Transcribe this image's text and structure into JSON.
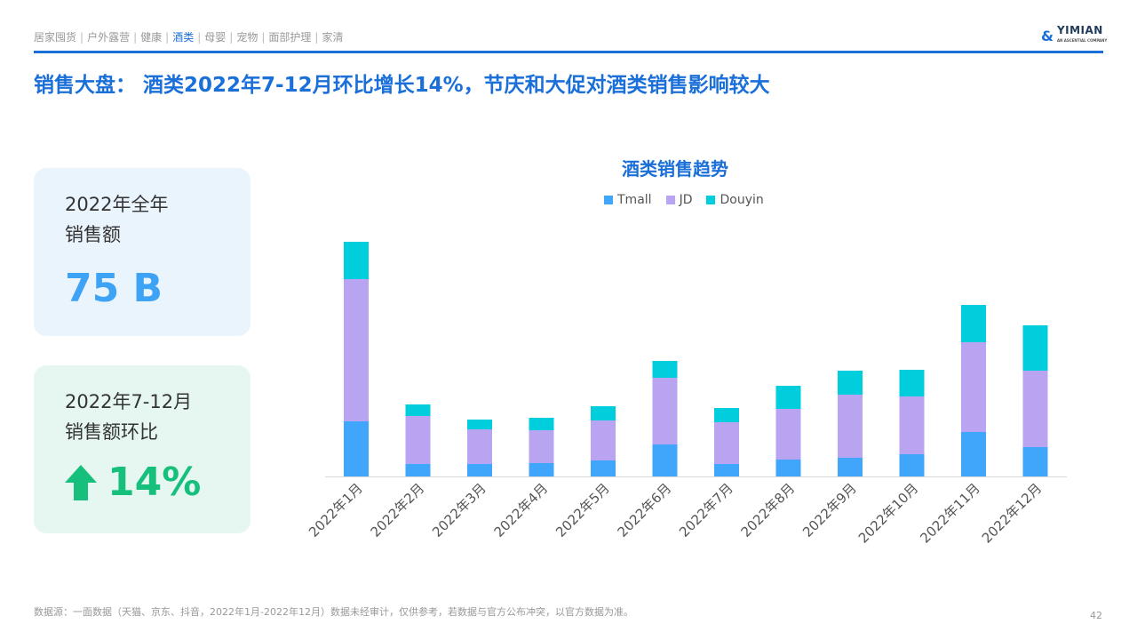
{
  "nav": {
    "items": [
      "居家囤货",
      "户外露营",
      "健康",
      "酒类",
      "母婴",
      "宠物",
      "面部护理",
      "家清"
    ],
    "active": "酒类"
  },
  "logo": {
    "name": "YIMIAN",
    "tagline": "AN ASCENTIAL COMPANY"
  },
  "title": "销售大盘： 酒类2022年7-12月环比增长14%，节庆和大促对酒类销售影响较大",
  "cards": [
    {
      "label_line1": "2022年全年",
      "label_line2": "销售额",
      "value": "75 B"
    },
    {
      "label_line1": "2022年7-12月",
      "label_line2": "销售额环比",
      "value": "14%",
      "trend": "up"
    }
  ],
  "footer": {
    "source": "数据源：一面数据（天猫、京东、抖音，2022年1月-2022年12月）数据未经审计，仅供参考，若数据与官方公布冲突，以官方数据为准。",
    "page": "42"
  },
  "chart_data": {
    "type": "bar",
    "stacked": true,
    "title": "酒类销售趋势",
    "legend_position": "top",
    "grid": false,
    "categories": [
      "2022年1月",
      "2022年2月",
      "2022年3月",
      "2022年4月",
      "2022年5月",
      "2022年6月",
      "2022年7月",
      "2022年8月",
      "2022年9月",
      "2022年10月",
      "2022年11月",
      "2022年12月"
    ],
    "series": [
      {
        "name": "Tmall",
        "color": "#3fa6fb",
        "values": [
          62,
          14,
          14,
          15,
          18,
          36,
          14,
          19,
          21,
          25,
          50,
          33
        ]
      },
      {
        "name": "JD",
        "color": "#b8a4f0",
        "values": [
          160,
          54,
          39,
          37,
          45,
          75,
          47,
          57,
          71,
          65,
          101,
          86
        ]
      },
      {
        "name": "Douyin",
        "color": "#00cedc",
        "values": [
          42,
          13,
          11,
          14,
          16,
          19,
          16,
          26,
          27,
          30,
          42,
          51
        ]
      }
    ]
  }
}
